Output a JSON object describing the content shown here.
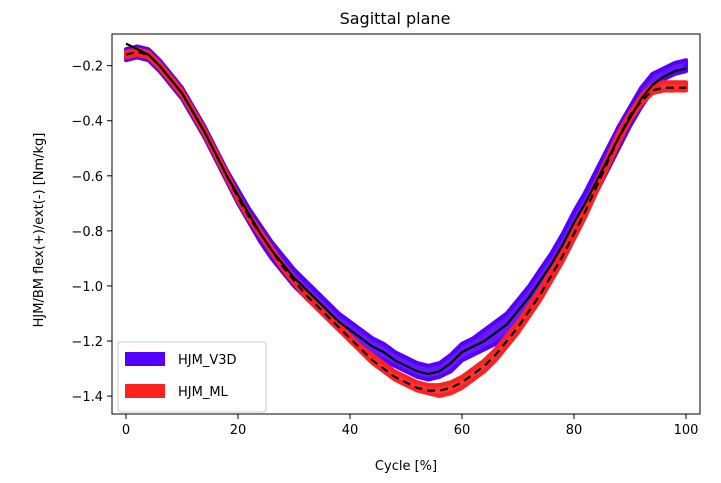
{
  "chart_data": {
    "type": "line",
    "title": "Sagittal plane",
    "xlabel": "Cycle [%]",
    "ylabel": "HJM/BM flex(+)/ext(-) [Nm/kg]",
    "xlim": [
      -2.5,
      102.5
    ],
    "ylim": [
      -1.465,
      -0.085
    ],
    "xticks": [
      0,
      20,
      40,
      60,
      80,
      100
    ],
    "yticks": [
      -1.4,
      -1.2,
      -1.0,
      -0.8,
      -0.6,
      -0.4,
      -0.2
    ],
    "xtick_labels": [
      "0",
      "20",
      "40",
      "60",
      "80",
      "100"
    ],
    "ytick_labels": [
      "−1.4",
      "−1.2",
      "−1.0",
      "−0.8",
      "−0.6",
      "−0.4",
      "−0.2"
    ],
    "grid": false,
    "legend_position": "lower-left",
    "series": [
      {
        "name": "HJM_V3D",
        "style": "band",
        "color": "#5500ff",
        "x": [
          0,
          2,
          4,
          6,
          8,
          10,
          12,
          14,
          16,
          18,
          20,
          22,
          24,
          26,
          28,
          30,
          32,
          34,
          36,
          38,
          40,
          42,
          44,
          46,
          48,
          50,
          52,
          54,
          56,
          58,
          60,
          62,
          64,
          66,
          68,
          70,
          72,
          74,
          76,
          78,
          80,
          82,
          84,
          86,
          88,
          90,
          92,
          94,
          96,
          98,
          100
        ],
        "lower": [
          -0.18,
          -0.17,
          -0.18,
          -0.22,
          -0.27,
          -0.32,
          -0.39,
          -0.46,
          -0.54,
          -0.62,
          -0.7,
          -0.77,
          -0.84,
          -0.9,
          -0.95,
          -1.0,
          -1.04,
          -1.08,
          -1.12,
          -1.16,
          -1.19,
          -1.22,
          -1.25,
          -1.27,
          -1.29,
          -1.31,
          -1.33,
          -1.34,
          -1.33,
          -1.31,
          -1.27,
          -1.25,
          -1.23,
          -1.21,
          -1.18,
          -1.13,
          -1.08,
          -1.02,
          -0.96,
          -0.89,
          -0.81,
          -0.74,
          -0.66,
          -0.58,
          -0.5,
          -0.42,
          -0.35,
          -0.29,
          -0.25,
          -0.23,
          -0.22
        ],
        "upper": [
          -0.14,
          -0.13,
          -0.14,
          -0.18,
          -0.23,
          -0.28,
          -0.35,
          -0.42,
          -0.5,
          -0.58,
          -0.65,
          -0.72,
          -0.78,
          -0.84,
          -0.89,
          -0.94,
          -0.98,
          -1.02,
          -1.06,
          -1.1,
          -1.13,
          -1.16,
          -1.19,
          -1.21,
          -1.24,
          -1.26,
          -1.28,
          -1.29,
          -1.28,
          -1.25,
          -1.21,
          -1.19,
          -1.16,
          -1.13,
          -1.1,
          -1.05,
          -1.0,
          -0.94,
          -0.88,
          -0.81,
          -0.73,
          -0.66,
          -0.58,
          -0.5,
          -0.42,
          -0.35,
          -0.28,
          -0.23,
          -0.21,
          -0.19,
          -0.18
        ]
      },
      {
        "name": "HJM_ML",
        "style": "band",
        "color": "#ff2020",
        "x": [
          0,
          2,
          4,
          6,
          8,
          10,
          12,
          14,
          16,
          18,
          20,
          22,
          24,
          26,
          28,
          30,
          32,
          34,
          36,
          38,
          40,
          42,
          44,
          46,
          48,
          50,
          52,
          54,
          56,
          58,
          60,
          62,
          64,
          66,
          68,
          70,
          72,
          74,
          76,
          78,
          80,
          82,
          84,
          86,
          88,
          90,
          92,
          94,
          96,
          98,
          100
        ],
        "lower": [
          -0.17,
          -0.16,
          -0.17,
          -0.21,
          -0.26,
          -0.31,
          -0.38,
          -0.45,
          -0.53,
          -0.61,
          -0.69,
          -0.76,
          -0.82,
          -0.88,
          -0.94,
          -0.99,
          -1.04,
          -1.08,
          -1.12,
          -1.16,
          -1.2,
          -1.24,
          -1.28,
          -1.31,
          -1.34,
          -1.36,
          -1.38,
          -1.39,
          -1.4,
          -1.39,
          -1.37,
          -1.34,
          -1.31,
          -1.27,
          -1.22,
          -1.17,
          -1.11,
          -1.05,
          -0.98,
          -0.91,
          -0.83,
          -0.75,
          -0.66,
          -0.57,
          -0.48,
          -0.4,
          -0.34,
          -0.3,
          -0.29,
          -0.29,
          -0.29
        ],
        "upper": [
          -0.15,
          -0.14,
          -0.15,
          -0.19,
          -0.24,
          -0.29,
          -0.36,
          -0.43,
          -0.51,
          -0.59,
          -0.67,
          -0.74,
          -0.8,
          -0.86,
          -0.92,
          -0.97,
          -1.02,
          -1.06,
          -1.1,
          -1.14,
          -1.18,
          -1.22,
          -1.25,
          -1.28,
          -1.31,
          -1.33,
          -1.35,
          -1.36,
          -1.36,
          -1.35,
          -1.33,
          -1.3,
          -1.27,
          -1.23,
          -1.18,
          -1.13,
          -1.07,
          -1.01,
          -0.94,
          -0.87,
          -0.79,
          -0.71,
          -0.62,
          -0.53,
          -0.44,
          -0.37,
          -0.31,
          -0.27,
          -0.26,
          -0.26,
          -0.26
        ]
      },
      {
        "style": "solid-line",
        "color": "#000000",
        "x": [
          0,
          2,
          4,
          6,
          8,
          10,
          12,
          14,
          16,
          18,
          20,
          22,
          24,
          26,
          28,
          30,
          32,
          34,
          36,
          38,
          40,
          42,
          44,
          46,
          48,
          50,
          52,
          54,
          56,
          58,
          60,
          62,
          64,
          66,
          68,
          70,
          72,
          74,
          76,
          78,
          80,
          82,
          84,
          86,
          88,
          90,
          92,
          94,
          96,
          98,
          100
        ],
        "values": [
          -0.12,
          -0.14,
          -0.16,
          -0.2,
          -0.25,
          -0.3,
          -0.37,
          -0.44,
          -0.52,
          -0.6,
          -0.67,
          -0.74,
          -0.81,
          -0.87,
          -0.92,
          -0.97,
          -1.01,
          -1.05,
          -1.09,
          -1.13,
          -1.16,
          -1.19,
          -1.22,
          -1.24,
          -1.27,
          -1.29,
          -1.31,
          -1.32,
          -1.31,
          -1.28,
          -1.24,
          -1.22,
          -1.2,
          -1.17,
          -1.14,
          -1.09,
          -1.04,
          -0.98,
          -0.92,
          -0.85,
          -0.77,
          -0.7,
          -0.62,
          -0.54,
          -0.46,
          -0.39,
          -0.32,
          -0.27,
          -0.24,
          -0.22,
          -0.21
        ]
      },
      {
        "style": "dashed-line",
        "color": "#000000",
        "x": [
          0,
          2,
          4,
          6,
          8,
          10,
          12,
          14,
          16,
          18,
          20,
          22,
          24,
          26,
          28,
          30,
          32,
          34,
          36,
          38,
          40,
          42,
          44,
          46,
          48,
          50,
          52,
          54,
          56,
          58,
          60,
          62,
          64,
          66,
          68,
          70,
          72,
          74,
          76,
          78,
          80,
          82,
          84,
          86,
          88,
          90,
          92,
          94,
          96,
          98,
          100
        ],
        "values": [
          -0.16,
          -0.15,
          -0.16,
          -0.2,
          -0.25,
          -0.3,
          -0.37,
          -0.44,
          -0.52,
          -0.6,
          -0.68,
          -0.75,
          -0.81,
          -0.87,
          -0.93,
          -0.98,
          -1.03,
          -1.07,
          -1.11,
          -1.15,
          -1.19,
          -1.23,
          -1.27,
          -1.3,
          -1.33,
          -1.35,
          -1.37,
          -1.38,
          -1.38,
          -1.37,
          -1.35,
          -1.32,
          -1.29,
          -1.25,
          -1.2,
          -1.15,
          -1.09,
          -1.03,
          -0.96,
          -0.89,
          -0.81,
          -0.73,
          -0.64,
          -0.55,
          -0.46,
          -0.38,
          -0.33,
          -0.29,
          -0.28,
          -0.28,
          -0.28
        ]
      }
    ]
  }
}
